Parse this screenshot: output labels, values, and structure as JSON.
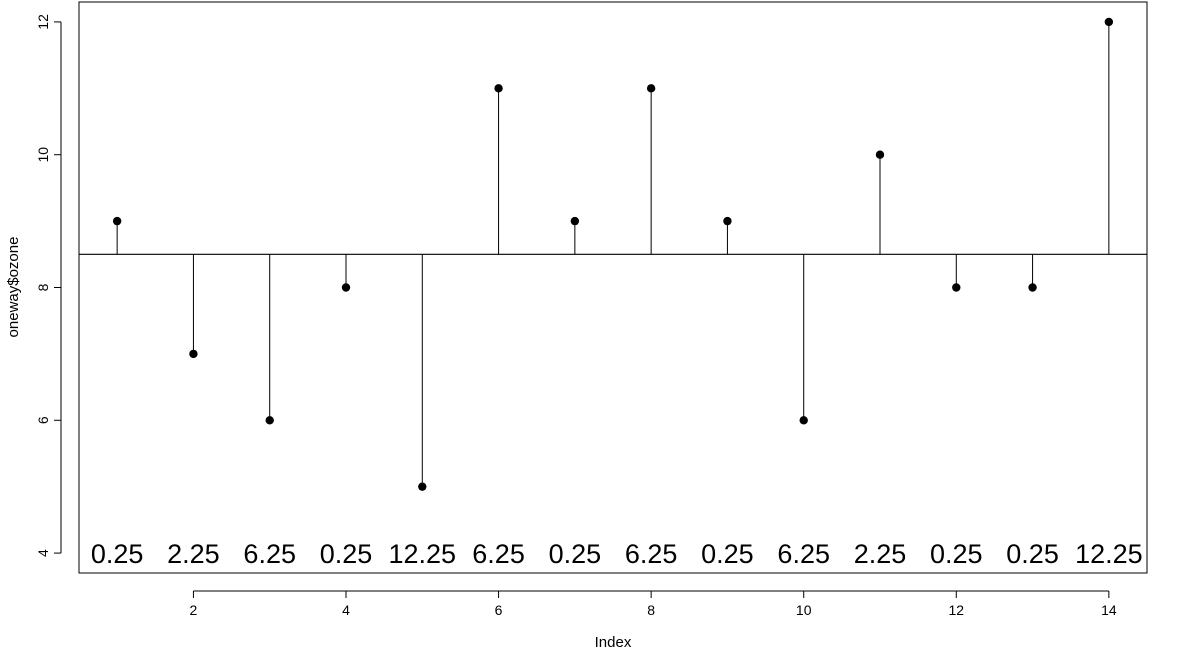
{
  "chart_data": {
    "type": "scatter",
    "style": "lollipop",
    "xlabel": "Index",
    "ylabel": "oneway$ozone",
    "xlim": [
      0.5,
      14.5
    ],
    "ylim": [
      3.7,
      12.3
    ],
    "x_ticks": [
      2,
      4,
      6,
      8,
      10,
      12,
      14
    ],
    "y_ticks": [
      4,
      6,
      8,
      10,
      12
    ],
    "reference_line": 8.5,
    "grid": false,
    "x": [
      1,
      2,
      3,
      4,
      5,
      6,
      7,
      8,
      9,
      10,
      11,
      12,
      13,
      14
    ],
    "y": [
      9,
      7,
      6,
      8,
      5,
      11,
      9,
      11,
      9,
      6,
      10,
      8,
      8,
      12
    ],
    "annotations": [
      "0.25",
      "2.25",
      "6.25",
      "0.25",
      "12.25",
      "6.25",
      "0.25",
      "6.25",
      "0.25",
      "6.25",
      "2.25",
      "0.25",
      "0.25",
      "12.25"
    ],
    "annotation_y": 4,
    "colors": {
      "points": "#000000",
      "lines": "#000000",
      "background": "#ffffff"
    }
  }
}
